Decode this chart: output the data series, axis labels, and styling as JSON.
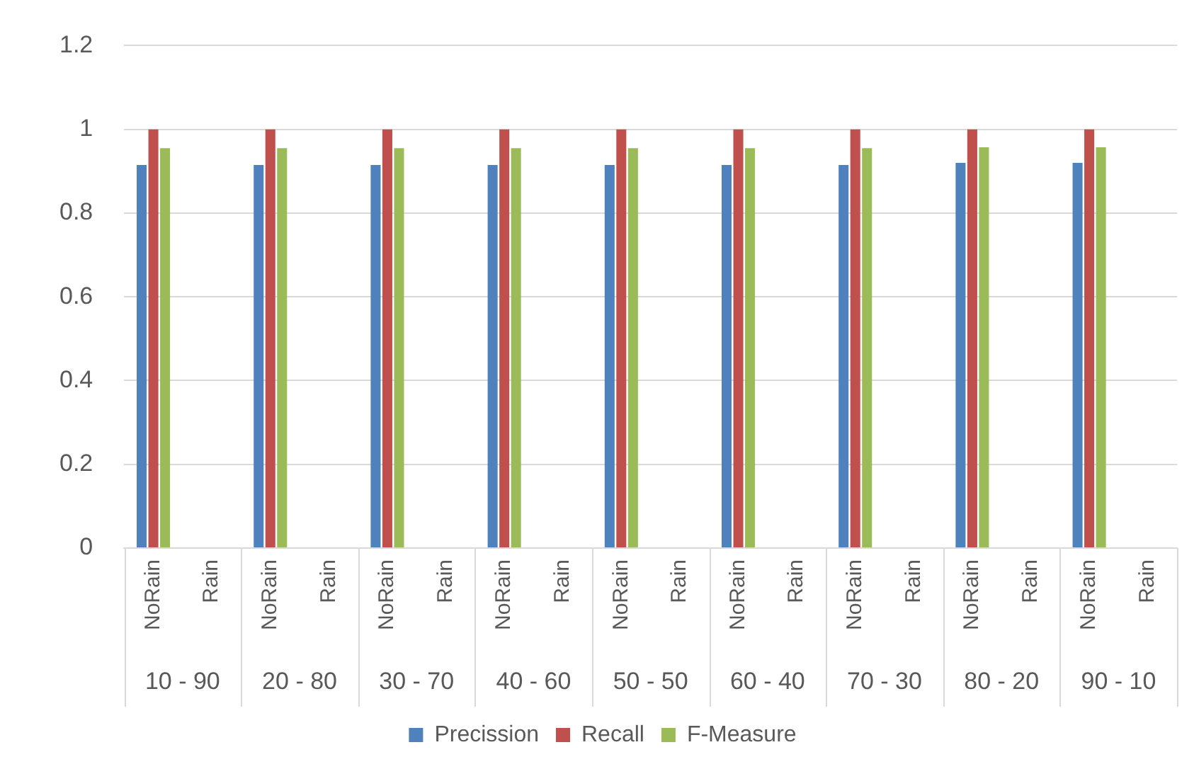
{
  "chart_data": {
    "type": "bar",
    "categories": [
      "NoRain",
      "Rain",
      "NoRain",
      "Rain",
      "NoRain",
      "Rain",
      "NoRain",
      "Rain",
      "NoRain",
      "Rain",
      "NoRain",
      "Rain",
      "NoRain",
      "Rain",
      "NoRain",
      "Rain",
      "NoRain",
      "Rain"
    ],
    "annotations": [
      "10 - 90",
      "20 - 80",
      "30 - 70",
      "40 - 60",
      "50 - 50",
      "60 - 40",
      "70 - 30",
      "80 - 20",
      "90 - 10"
    ],
    "series": [
      {
        "name": "Precission",
        "color": "#4f81bd",
        "values": [
          0.915,
          0,
          0.915,
          0,
          0.915,
          0,
          0.915,
          0,
          0.915,
          0,
          0.915,
          0,
          0.915,
          0,
          0.92,
          0,
          0.92,
          0
        ]
      },
      {
        "name": "Recall",
        "color": "#c0504d",
        "values": [
          1,
          0,
          1,
          0,
          1,
          0,
          1,
          0,
          1,
          0,
          1,
          0,
          1,
          0,
          1,
          0,
          1,
          0
        ]
      },
      {
        "name": "F-Measure",
        "color": "#9bbb59",
        "values": [
          0.955,
          0,
          0.955,
          0,
          0.955,
          0,
          0.955,
          0,
          0.955,
          0,
          0.955,
          0,
          0.955,
          0,
          0.957,
          0,
          0.957,
          0
        ]
      }
    ],
    "ylim": [
      0,
      1.2
    ],
    "yticks": [
      0,
      0.2,
      0.4,
      0.6,
      0.8,
      1,
      1.2
    ],
    "grid": "y",
    "legend": "bottom"
  }
}
